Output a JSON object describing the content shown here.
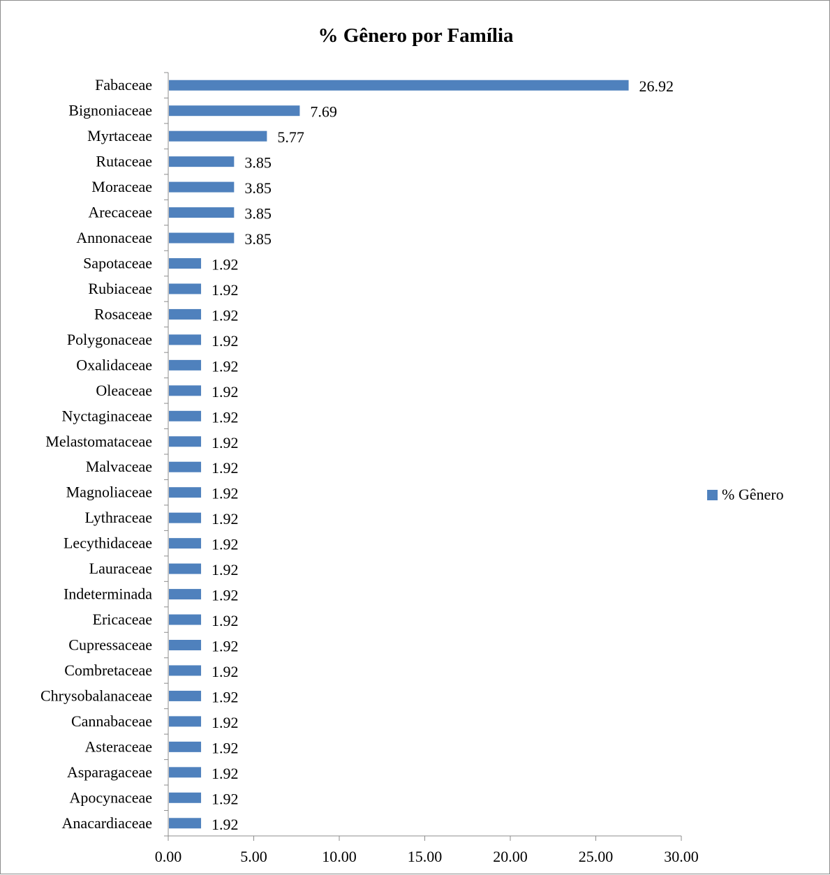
{
  "chart_data": {
    "type": "bar",
    "orientation": "horizontal",
    "title": "% Gênero por Família",
    "xlabel": "",
    "ylabel": "",
    "xlim": [
      0,
      30
    ],
    "x_ticks": [
      "0.00",
      "5.00",
      "10.00",
      "15.00",
      "20.00",
      "25.00",
      "30.00"
    ],
    "grid": false,
    "legend_position": "right",
    "bar_color": "#4f81bd",
    "categories": [
      "Fabaceae",
      "Bignoniaceae",
      "Myrtaceae",
      "Rutaceae",
      "Moraceae",
      "Arecaceae",
      "Annonaceae",
      "Sapotaceae",
      "Rubiaceae",
      "Rosaceae",
      "Polygonaceae",
      "Oxalidaceae",
      "Oleaceae",
      "Nyctaginaceae",
      "Melastomataceae",
      "Malvaceae",
      "Magnoliaceae",
      "Lythraceae",
      "Lecythidaceae",
      "Lauraceae",
      "Indeterminada",
      "Ericaceae",
      "Cupressaceae",
      "Combretaceae",
      "Chrysobalanaceae",
      "Cannabaceae",
      "Asteraceae",
      "Asparagaceae",
      "Apocynaceae",
      "Anacardiaceae"
    ],
    "series": [
      {
        "name": "% Gênero",
        "values": [
          26.92,
          7.69,
          5.77,
          3.85,
          3.85,
          3.85,
          3.85,
          1.92,
          1.92,
          1.92,
          1.92,
          1.92,
          1.92,
          1.92,
          1.92,
          1.92,
          1.92,
          1.92,
          1.92,
          1.92,
          1.92,
          1.92,
          1.92,
          1.92,
          1.92,
          1.92,
          1.92,
          1.92,
          1.92,
          1.92
        ],
        "data_labels": [
          "26.92",
          "7.69",
          "5.77",
          "3.85",
          "3.85",
          "3.85",
          "3.85",
          "1.92",
          "1.92",
          "1.92",
          "1.92",
          "1.92",
          "1.92",
          "1.92",
          "1.92",
          "1.92",
          "1.92",
          "1.92",
          "1.92",
          "1.92",
          "1.92",
          "1.92",
          "1.92",
          "1.92",
          "1.92",
          "1.92",
          "1.92",
          "1.92",
          "1.92",
          "1.92"
        ]
      }
    ]
  }
}
